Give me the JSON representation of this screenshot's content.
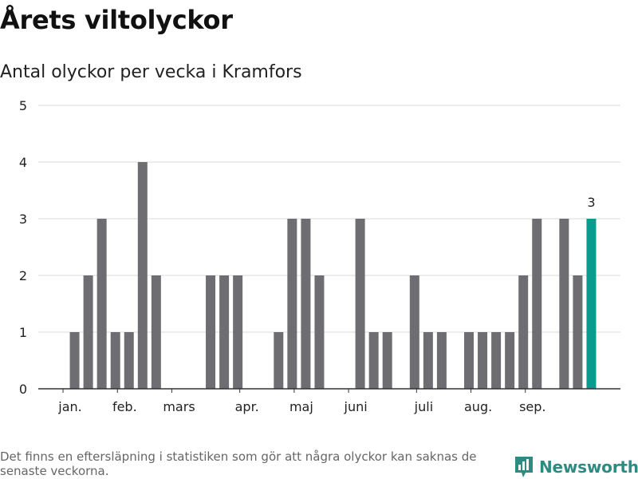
{
  "header": {
    "title": "Årets viltolyckor",
    "subtitle": "Antal olyckor per vecka i Kramfors"
  },
  "footer": {
    "note": "Det finns en eftersläpning i statistiken som gör att några olyckor kan saknas de senaste veckorna.",
    "brand": "Newsworthy"
  },
  "colors": {
    "bar": "#6e6d72",
    "highlight": "#0a9b8f",
    "grid": "#d9d9d9",
    "axis": "#333333",
    "brand": "#2f8a82"
  },
  "chart_data": {
    "type": "bar",
    "title": "Antal olyckor per vecka i Kramfors",
    "xlabel": "",
    "ylabel": "",
    "ylim": [
      0,
      5
    ],
    "y_ticks": [
      0,
      1,
      2,
      3,
      4,
      5
    ],
    "grid": true,
    "weeks": [
      1,
      2,
      3,
      4,
      5,
      6,
      7,
      8,
      9,
      10,
      11,
      12,
      13,
      14,
      15,
      16,
      17,
      18,
      19,
      20,
      21,
      22,
      23,
      24,
      25,
      26,
      27,
      28,
      29,
      30,
      31,
      32,
      33,
      34,
      35,
      36,
      37,
      38,
      39,
      40
    ],
    "values": [
      0,
      1,
      2,
      3,
      1,
      1,
      4,
      2,
      0,
      0,
      0,
      2,
      2,
      2,
      0,
      0,
      1,
      3,
      3,
      2,
      0,
      0,
      3,
      1,
      1,
      0,
      2,
      1,
      1,
      0,
      1,
      1,
      1,
      1,
      2,
      3,
      0,
      3,
      2,
      3
    ],
    "highlight_index": 39,
    "highlight_label": "3",
    "month_labels": [
      {
        "label": "jan.",
        "week": 1.5
      },
      {
        "label": "feb.",
        "week": 5.5
      },
      {
        "label": "mars",
        "week": 9.5
      },
      {
        "label": "apr.",
        "week": 14.5
      },
      {
        "label": "maj",
        "week": 18.5
      },
      {
        "label": "juni",
        "week": 22.5
      },
      {
        "label": "juli",
        "week": 27.5
      },
      {
        "label": "aug.",
        "week": 31.5
      },
      {
        "label": "sep.",
        "week": 35.5
      }
    ],
    "month_ticks": [
      1,
      5,
      9,
      14,
      18,
      22,
      27,
      31,
      35
    ]
  }
}
